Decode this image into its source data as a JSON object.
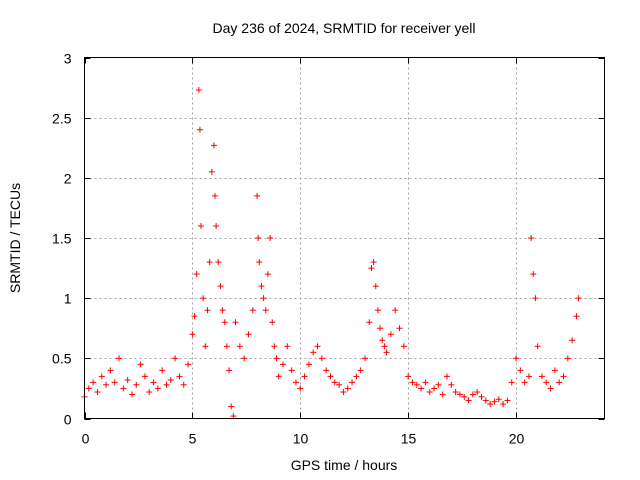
{
  "chart_data": {
    "type": "scatter",
    "title": "Day 236 of 2024, SRMTID for receiver yell",
    "xlabel": "GPS time / hours",
    "ylabel": "SRMTID / TECUs",
    "xlim": [
      0,
      24.1
    ],
    "ylim": [
      0,
      3
    ],
    "xticks": [
      0,
      5,
      10,
      15,
      20
    ],
    "yticks": [
      0,
      0.5,
      1,
      1.5,
      2,
      2.5,
      3
    ],
    "grid": true,
    "marker": "+",
    "series": [
      {
        "name": "SRMTID",
        "color": "#ff0000",
        "x": [
          0.0,
          0.2,
          0.4,
          0.6,
          0.8,
          1.0,
          1.2,
          1.4,
          1.6,
          1.8,
          2.0,
          2.2,
          2.4,
          2.6,
          2.8,
          3.0,
          3.2,
          3.4,
          3.6,
          3.8,
          4.0,
          4.2,
          4.4,
          4.6,
          4.8,
          5.0,
          5.1,
          5.2,
          5.3,
          5.35,
          5.4,
          5.5,
          5.6,
          5.7,
          5.8,
          5.9,
          6.0,
          6.05,
          6.1,
          6.2,
          6.3,
          6.4,
          6.5,
          6.6,
          6.7,
          6.8,
          6.9,
          7.0,
          7.2,
          7.4,
          7.6,
          7.8,
          8.0,
          8.05,
          8.1,
          8.2,
          8.3,
          8.4,
          8.5,
          8.6,
          8.7,
          8.8,
          8.9,
          9.0,
          9.2,
          9.4,
          9.6,
          9.8,
          10.0,
          10.2,
          10.4,
          10.6,
          10.8,
          11.0,
          11.2,
          11.4,
          11.6,
          11.8,
          12.0,
          12.2,
          12.4,
          12.6,
          12.8,
          13.0,
          13.2,
          13.3,
          13.4,
          13.5,
          13.6,
          13.7,
          13.8,
          13.9,
          14.0,
          14.2,
          14.4,
          14.6,
          14.8,
          15.0,
          15.2,
          15.4,
          15.6,
          15.8,
          16.0,
          16.2,
          16.4,
          16.6,
          16.8,
          17.0,
          17.2,
          17.4,
          17.6,
          17.8,
          18.0,
          18.2,
          18.4,
          18.6,
          18.8,
          19.0,
          19.2,
          19.4,
          19.6,
          19.8,
          20.0,
          20.2,
          20.4,
          20.6,
          20.7,
          20.8,
          20.9,
          21.0,
          21.2,
          21.4,
          21.6,
          21.8,
          22.0,
          22.2,
          22.4,
          22.6,
          22.8,
          22.9
        ],
        "y": [
          0.18,
          0.25,
          0.3,
          0.22,
          0.35,
          0.28,
          0.4,
          0.3,
          0.5,
          0.25,
          0.32,
          0.2,
          0.28,
          0.45,
          0.35,
          0.22,
          0.3,
          0.25,
          0.4,
          0.28,
          0.32,
          0.5,
          0.35,
          0.28,
          0.45,
          0.7,
          0.85,
          1.2,
          2.73,
          2.4,
          1.6,
          1.0,
          0.6,
          0.9,
          1.3,
          2.05,
          2.27,
          1.85,
          1.6,
          1.3,
          1.1,
          0.9,
          0.8,
          0.6,
          0.4,
          0.1,
          0.02,
          0.8,
          0.6,
          0.5,
          0.7,
          0.9,
          1.85,
          1.5,
          1.3,
          1.1,
          1.0,
          0.9,
          1.2,
          1.5,
          0.8,
          0.6,
          0.5,
          0.35,
          0.45,
          0.6,
          0.4,
          0.3,
          0.25,
          0.35,
          0.45,
          0.55,
          0.6,
          0.5,
          0.4,
          0.35,
          0.3,
          0.28,
          0.22,
          0.25,
          0.3,
          0.35,
          0.4,
          0.5,
          0.8,
          1.25,
          1.3,
          1.1,
          0.9,
          0.75,
          0.65,
          0.6,
          0.55,
          0.7,
          0.9,
          0.75,
          0.6,
          0.35,
          0.3,
          0.28,
          0.25,
          0.3,
          0.22,
          0.25,
          0.28,
          0.2,
          0.35,
          0.28,
          0.22,
          0.2,
          0.18,
          0.15,
          0.2,
          0.22,
          0.18,
          0.15,
          0.12,
          0.14,
          0.16,
          0.12,
          0.15,
          0.3,
          0.5,
          0.4,
          0.3,
          0.35,
          1.5,
          1.2,
          1.0,
          0.6,
          0.35,
          0.3,
          0.25,
          0.4,
          0.3,
          0.35,
          0.5,
          0.65,
          0.85,
          1.0
        ]
      }
    ]
  }
}
